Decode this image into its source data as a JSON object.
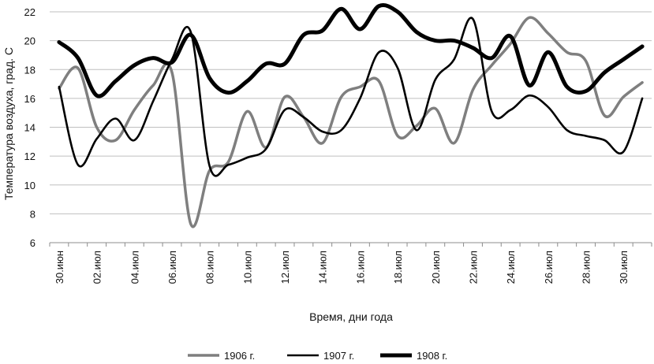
{
  "chart_data": {
    "type": "line",
    "xlabel": "Время, дни года",
    "ylabel": "Температура воздуха, град. С",
    "ylim": [
      6,
      22
    ],
    "yticks": [
      6,
      8,
      10,
      12,
      14,
      16,
      18,
      20,
      22
    ],
    "grid": "horizontal",
    "legend_position": "bottom",
    "categories": [
      "30.июн",
      "01.июл",
      "02.июл",
      "03.июл",
      "04.июл",
      "05.июл",
      "06.июл",
      "07.июл",
      "08.июл",
      "09.июл",
      "10.июл",
      "11.июл",
      "12.июл",
      "13.июл",
      "14.июл",
      "15.июл",
      "16.июл",
      "17.июл",
      "18.июл",
      "19.июл",
      "20.июл",
      "21.июл",
      "22.июл",
      "23.июл",
      "24.июл",
      "25.июл",
      "26.июл",
      "27.июл",
      "28.июл",
      "29.июл",
      "30.июл",
      "31.июл"
    ],
    "tick_labels": [
      "30.июн",
      "02.июл",
      "04.июл",
      "06.июл",
      "08.июл",
      "10.июл",
      "12.июл",
      "14.июл",
      "16.июл",
      "18.июл",
      "20.июл",
      "22.июл",
      "24.июл",
      "26.июл",
      "28.июл",
      "30.июл"
    ],
    "series": [
      {
        "name": "1906 г.",
        "color": "#7f7f7f",
        "values": [
          16.7,
          18.1,
          14.0,
          13.1,
          15.2,
          16.9,
          17.8,
          7.3,
          11.0,
          11.6,
          15.1,
          12.6,
          16.1,
          14.7,
          12.9,
          16.1,
          16.8,
          17.2,
          13.4,
          14.1,
          15.3,
          12.9,
          16.6,
          18.3,
          19.8,
          21.6,
          20.5,
          19.2,
          18.6,
          14.8,
          16.1,
          17.1
        ]
      },
      {
        "name": "1907 г.",
        "color": "#000000",
        "values": [
          16.8,
          11.4,
          13.2,
          14.6,
          13.1,
          15.8,
          18.7,
          20.6,
          11.3,
          11.4,
          11.9,
          12.5,
          15.2,
          14.7,
          13.7,
          13.8,
          16.0,
          19.2,
          18.1,
          13.8,
          17.3,
          18.7,
          21.5,
          15.1,
          15.2,
          16.2,
          15.4,
          13.8,
          13.4,
          13.1,
          12.3,
          16.0
        ]
      },
      {
        "name": "1908 г.",
        "color": "#000000",
        "values": [
          19.9,
          18.8,
          16.2,
          17.2,
          18.3,
          18.8,
          18.5,
          20.4,
          17.4,
          16.4,
          17.2,
          18.4,
          18.4,
          20.4,
          20.7,
          22.2,
          20.8,
          22.4,
          22.0,
          20.6,
          20.0,
          20.0,
          19.5,
          18.8,
          20.3,
          16.9,
          19.2,
          16.8,
          16.5,
          17.8,
          18.7,
          19.6
        ]
      }
    ]
  }
}
